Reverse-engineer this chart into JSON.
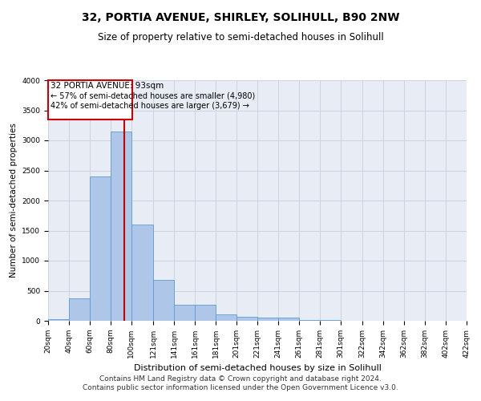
{
  "title": "32, PORTIA AVENUE, SHIRLEY, SOLIHULL, B90 2NW",
  "subtitle": "Size of property relative to semi-detached houses in Solihull",
  "xlabel": "Distribution of semi-detached houses by size in Solihull",
  "ylabel": "Number of semi-detached properties",
  "footer_line1": "Contains HM Land Registry data © Crown copyright and database right 2024.",
  "footer_line2": "Contains public sector information licensed under the Open Government Licence v3.0.",
  "annotation_title": "32 PORTIA AVENUE: 93sqm",
  "annotation_line1": "← 57% of semi-detached houses are smaller (4,980)",
  "annotation_line2": "42% of semi-detached houses are larger (3,679) →",
  "bin_edges": [
    20,
    40,
    60,
    80,
    100,
    121,
    141,
    161,
    181,
    201,
    221,
    241,
    261,
    281,
    301,
    322,
    342,
    362,
    382,
    402,
    422
  ],
  "bin_labels": [
    "20sqm",
    "40sqm",
    "60sqm",
    "80sqm",
    "100sqm",
    "121sqm",
    "141sqm",
    "161sqm",
    "181sqm",
    "201sqm",
    "221sqm",
    "241sqm",
    "261sqm",
    "281sqm",
    "301sqm",
    "322sqm",
    "342sqm",
    "362sqm",
    "382sqm",
    "402sqm",
    "422sqm"
  ],
  "bar_heights": [
    30,
    380,
    2400,
    3150,
    1600,
    680,
    270,
    270,
    110,
    65,
    60,
    60,
    20,
    10,
    5,
    3,
    2,
    1,
    1,
    0
  ],
  "bar_color": "#aec6e8",
  "bar_edge_color": "#5b9bd5",
  "vline_color": "#cc0000",
  "vline_x": 93,
  "ylim": [
    0,
    4000
  ],
  "yticks": [
    0,
    500,
    1000,
    1500,
    2000,
    2500,
    3000,
    3500,
    4000
  ],
  "grid_color": "#c8d0dc",
  "bg_color": "#e8edf5",
  "annotation_box_color": "#ffffff",
  "annotation_box_edge": "#cc0000",
  "title_fontsize": 10,
  "subtitle_fontsize": 8.5,
  "xlabel_fontsize": 8,
  "ylabel_fontsize": 7.5,
  "tick_fontsize": 6.5,
  "annotation_fontsize": 7.5,
  "footer_fontsize": 6.5
}
